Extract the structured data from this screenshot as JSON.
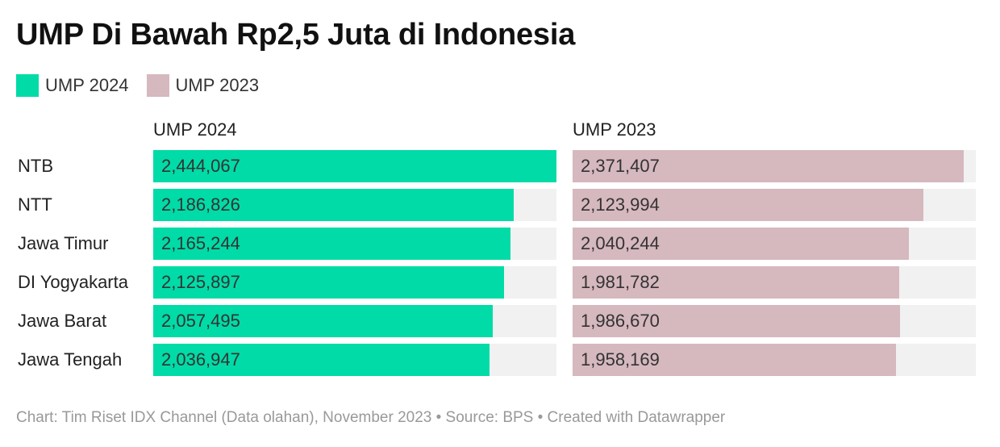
{
  "title": "UMP Di Bawah Rp2,5 Juta di Indonesia",
  "legend": [
    {
      "label": "UMP 2024",
      "color": "#00dba7"
    },
    {
      "label": "UMP 2023",
      "color": "#d6b8bf"
    }
  ],
  "footer": {
    "text": "Chart: Tim Riset IDX Channel (Data olahan), November 2023 • Source: BPS • Created with Datawrapper"
  },
  "chart_data": {
    "type": "bar",
    "orientation": "horizontal",
    "title": "UMP Di Bawah Rp2,5 Juta di Indonesia",
    "categories": [
      "NTB",
      "NTT",
      "Jawa Timur",
      "DI Yogyakarta",
      "Jawa Barat",
      "Jawa Tengah"
    ],
    "xlim": [
      0,
      2444067
    ],
    "grid": false,
    "legend_position": "top-left",
    "series": [
      {
        "name": "UMP 2024",
        "color": "#00dba7",
        "values": [
          2444067,
          2186826,
          2165244,
          2125897,
          2057495,
          2036947
        ],
        "labels": [
          "2,444,067",
          "2,186,826",
          "2,165,244",
          "2,125,897",
          "2,057,495",
          "2,036,947"
        ]
      },
      {
        "name": "UMP 2023",
        "color": "#d6b8bf",
        "values": [
          2371407,
          2123994,
          2040244,
          1981782,
          1986670,
          1958169
        ],
        "labels": [
          "2,371,407",
          "2,123,994",
          "2,040,244",
          "1,981,782",
          "1,986,670",
          "1,958,169"
        ]
      }
    ]
  }
}
